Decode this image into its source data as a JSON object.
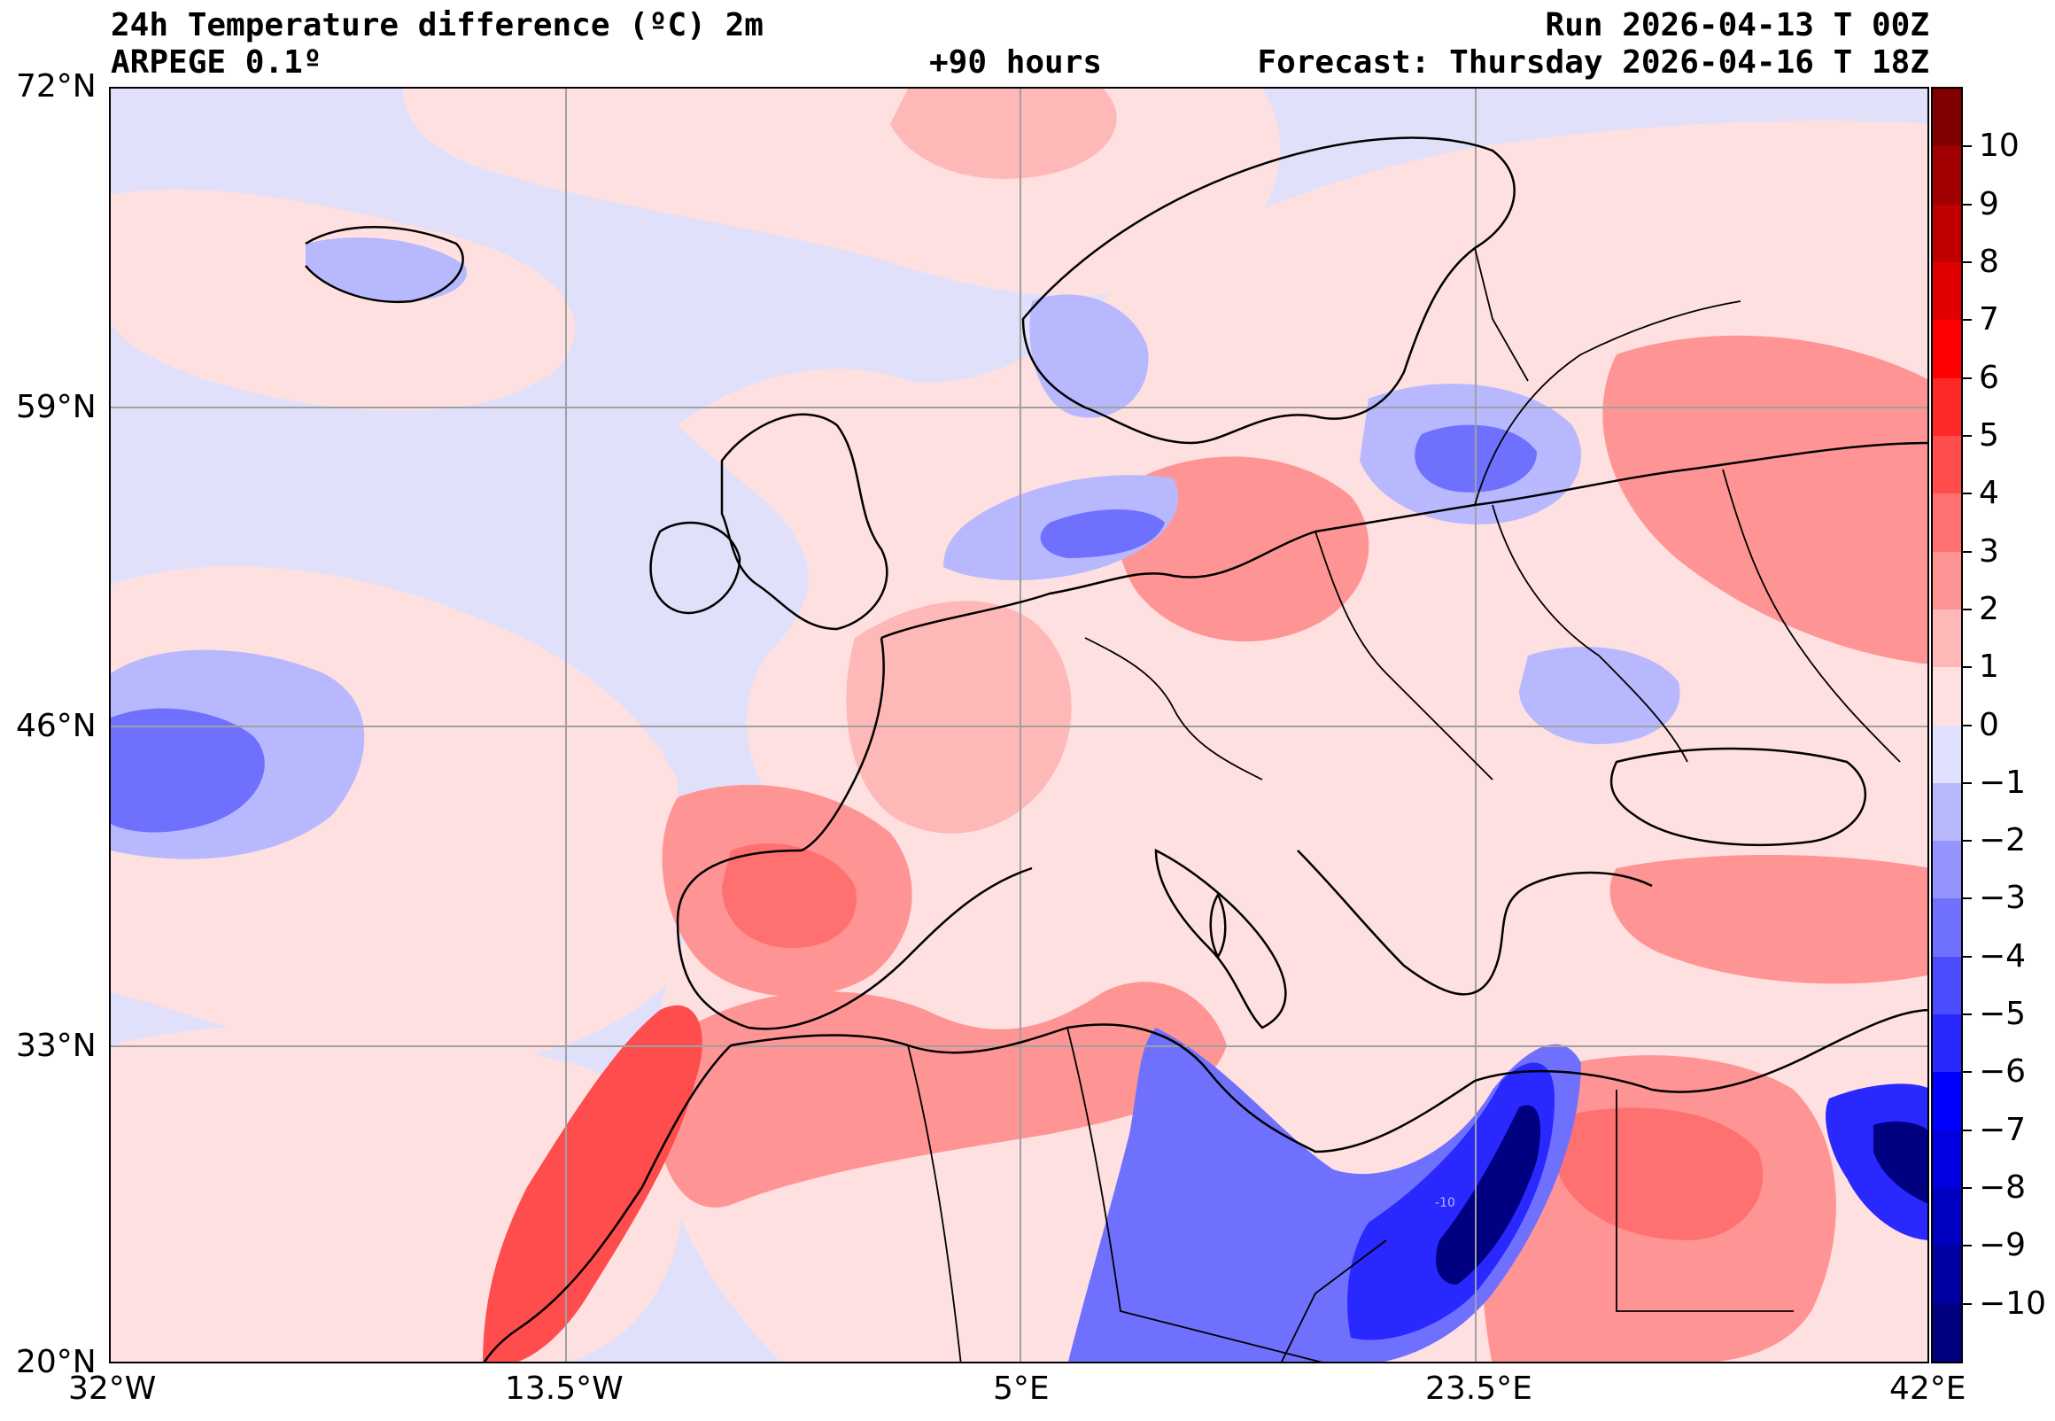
{
  "header": {
    "title": "24h Temperature difference (ºC) 2m",
    "model": "ARPEGE 0.1º",
    "lead_time": "+90 hours",
    "run": "Run 2026-04-13 T 00Z",
    "forecast": "Forecast: Thursday 2026-04-16 T 18Z"
  },
  "map": {
    "lat_labels": [
      "72°N",
      "59°N",
      "46°N",
      "33°N",
      "20°N"
    ],
    "lon_labels": [
      "32°W",
      "13.5°W",
      "5°E",
      "23.5°E",
      "42°E"
    ],
    "lat_range": [
      20,
      72
    ],
    "lon_range": [
      -32,
      42
    ],
    "contour_label": "-10"
  },
  "colorbar": {
    "labels": [
      "10",
      "9",
      "8",
      "7",
      "6",
      "5",
      "4",
      "3",
      "2",
      "1",
      "0",
      "−1",
      "−2",
      "−3",
      "−4",
      "−5",
      "−6",
      "−7",
      "−8",
      "−9",
      "−10"
    ],
    "colors_top_to_bottom": [
      "#800000",
      "#a00000",
      "#c00000",
      "#e00000",
      "#ff0000",
      "#ff2828",
      "#ff4c4c",
      "#ff7070",
      "#ff9494",
      "#ffb8b8",
      "#ffe0e0",
      "#e0e0ff",
      "#b8b8ff",
      "#9494ff",
      "#7070ff",
      "#4c4cff",
      "#2828ff",
      "#0000ff",
      "#0000e0",
      "#0000c0",
      "#0000a0",
      "#000080"
    ],
    "range": [
      -11,
      11
    ]
  },
  "colors": {
    "warm": "#ffe0e0",
    "warm2": "#ffb8b8",
    "warm3": "#ff9494",
    "warm4": "#ff4c4c",
    "cool": "#e0e0fa",
    "cool2": "#b8b8ff",
    "cool3": "#7070ff",
    "cool4": "#2828ff",
    "cool5": "#000080",
    "border": "#000000",
    "grid": "#a0a0a0"
  }
}
